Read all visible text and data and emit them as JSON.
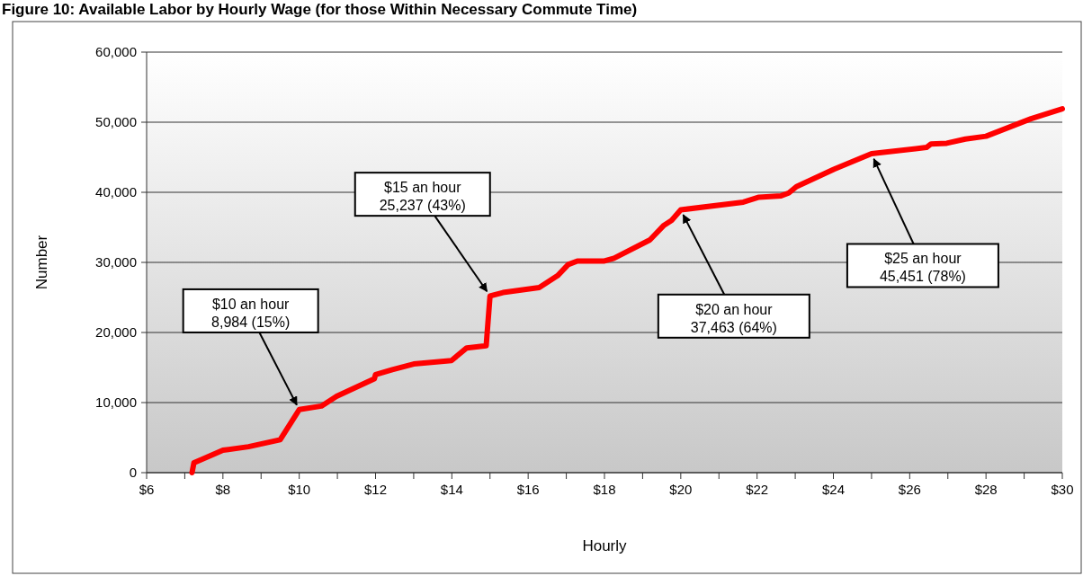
{
  "chart_data": {
    "type": "line",
    "title": "Figure 10: Available Labor by Hourly Wage (for those Within Necessary Commute Time)",
    "xlabel": "Hourly",
    "ylabel": "Number",
    "x": [
      7.19,
      7.24,
      8.0,
      8.67,
      9.5,
      10.0,
      10.58,
      10.98,
      11.97,
      12.0,
      12.44,
      13.0,
      13.99,
      14.39,
      14.9,
      15.0,
      15.34,
      16.29,
      16.77,
      17.05,
      17.29,
      18.0,
      18.25,
      19.19,
      19.56,
      19.76,
      20.0,
      21.64,
      22.05,
      22.63,
      22.83,
      23.03,
      24.02,
      25.0,
      26.44,
      26.56,
      26.97,
      27.46,
      28.0,
      29.18,
      30.0
    ],
    "series": [
      {
        "color": "#ff0000",
        "values": [
          0,
          1400,
          3200,
          3700,
          4700,
          9000,
          9500,
          10900,
          13400,
          14000,
          14700,
          15500,
          16000,
          17800,
          18100,
          25200,
          25700,
          26400,
          28100,
          29700,
          30200,
          30200,
          30600,
          33200,
          35300,
          36000,
          37500,
          38600,
          39300,
          39500,
          39900,
          40800,
          43300,
          45500,
          46400,
          46900,
          47000,
          47600,
          48000,
          50500,
          51900
        ]
      }
    ],
    "xlim": [
      6,
      30
    ],
    "xticks": [
      {
        "value": 6,
        "label": "$6"
      },
      {
        "value": 7,
        "label": null
      },
      {
        "value": 8,
        "label": "$8"
      },
      {
        "value": 9,
        "label": null
      },
      {
        "value": 10,
        "label": "$10"
      },
      {
        "value": 11,
        "label": null
      },
      {
        "value": 12,
        "label": "$12"
      },
      {
        "value": 13,
        "label": null
      },
      {
        "value": 14,
        "label": "$14"
      },
      {
        "value": 15,
        "label": null
      },
      {
        "value": 16,
        "label": "$16"
      },
      {
        "value": 17,
        "label": null
      },
      {
        "value": 18,
        "label": "$18"
      },
      {
        "value": 19,
        "label": null
      },
      {
        "value": 20,
        "label": "$20"
      },
      {
        "value": 21,
        "label": null
      },
      {
        "value": 22,
        "label": "$22"
      },
      {
        "value": 23,
        "label": null
      },
      {
        "value": 24,
        "label": "$24"
      },
      {
        "value": 25,
        "label": null
      },
      {
        "value": 26,
        "label": "$26"
      },
      {
        "value": 27,
        "label": null
      },
      {
        "value": 28,
        "label": "$28"
      },
      {
        "value": 29,
        "label": null
      },
      {
        "value": 30,
        "label": "$30"
      }
    ],
    "ylim": [
      0,
      60000
    ],
    "yticks": [
      0,
      {
        "value": 10000,
        "label": "10,000"
      },
      {
        "value": 20000,
        "label": "20,000"
      },
      {
        "value": 30000,
        "label": "30,000"
      },
      {
        "value": 40000,
        "label": "40,000"
      },
      {
        "value": 50000,
        "label": "50,000"
      },
      {
        "value": 60000,
        "label": "60,000"
      }
    ],
    "grid": "y",
    "marker": "none",
    "line_style": "solid",
    "annotations": [
      {
        "text": "$10 an hour\n8,984 (15%)",
        "x": 10,
        "y": 8984
      },
      {
        "text": "$15 an hour\n25,237 (43%)",
        "x": 15,
        "y": 25237
      },
      {
        "text": "$20 an hour\n37,463 (64%)",
        "x": 20,
        "y": 37463
      },
      {
        "text": "$25 an hour\n45,451 (78%)",
        "x": 25,
        "y": 45451
      }
    ]
  }
}
